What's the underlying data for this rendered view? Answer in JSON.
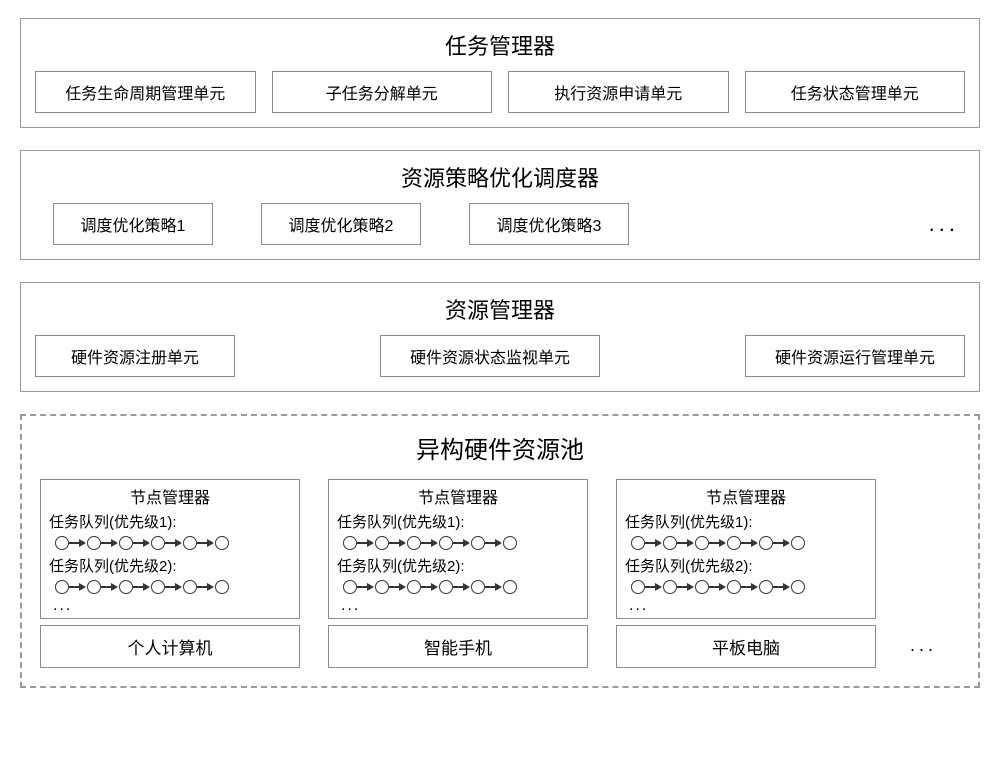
{
  "colors": {
    "border": "#9a9a9a",
    "box_border": "#8a8a8a",
    "line": "#333333",
    "bg": "#ffffff"
  },
  "task_manager": {
    "title": "任务管理器",
    "units": [
      "任务生命周期管理单元",
      "子任务分解单元",
      "执行资源申请单元",
      "任务状态管理单元"
    ]
  },
  "scheduler": {
    "title": "资源策略优化调度器",
    "strategies": [
      "调度优化策略1",
      "调度优化策略2",
      "调度优化策略3"
    ],
    "ellipsis": "..."
  },
  "resource_manager": {
    "title": "资源管理器",
    "units": [
      "硬件资源注册单元",
      "硬件资源状态监视单元",
      "硬件资源运行管理单元"
    ]
  },
  "pool": {
    "title": "异构硬件资源池",
    "node_manager_label": "节点管理器",
    "queue1_label": "任务队列(优先级1):",
    "queue2_label": "任务队列(优先级2):",
    "chain_nodes": 6,
    "node_ellipsis": "...",
    "devices": [
      "个人计算机",
      "智能手机",
      "平板电脑"
    ],
    "ellipsis": "..."
  }
}
